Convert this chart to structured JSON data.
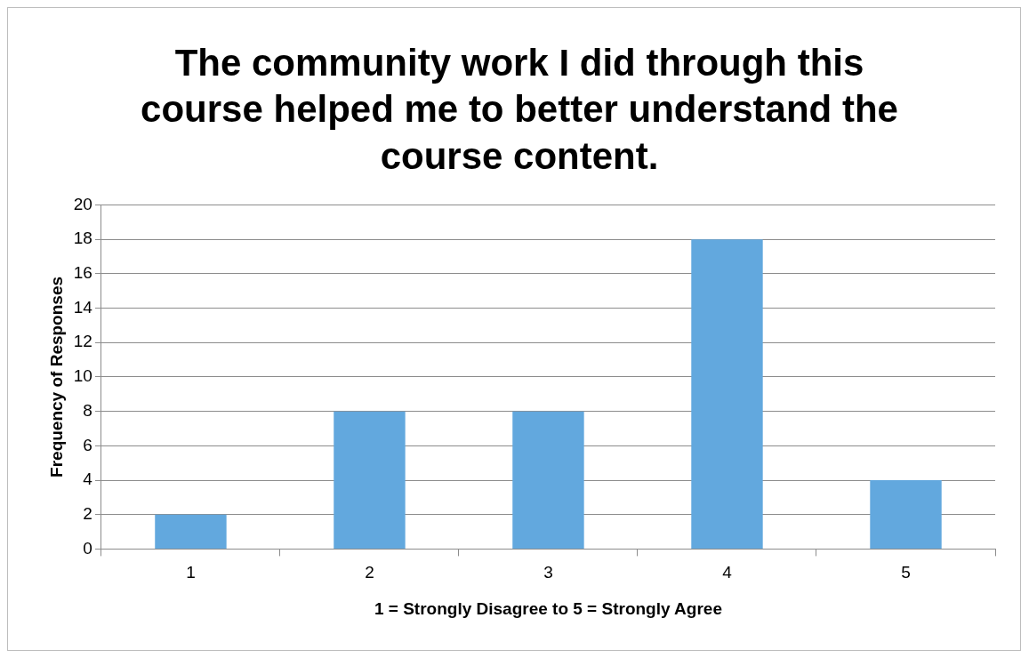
{
  "chart_data": {
    "type": "bar",
    "title": "The community work I did through this course helped me to better understand the course content.",
    "xlabel": "1 = Strongly Disagree to 5 = Strongly Agree",
    "ylabel": "Frequency of Responses",
    "categories": [
      "1",
      "2",
      "3",
      "4",
      "5"
    ],
    "values": [
      2,
      8,
      8,
      18,
      4
    ],
    "color": "#62a8de",
    "ylim": [
      0,
      20
    ],
    "yticks": [
      0,
      2,
      4,
      6,
      8,
      10,
      12,
      14,
      16,
      18,
      20
    ],
    "grid": "y",
    "legend": false
  }
}
